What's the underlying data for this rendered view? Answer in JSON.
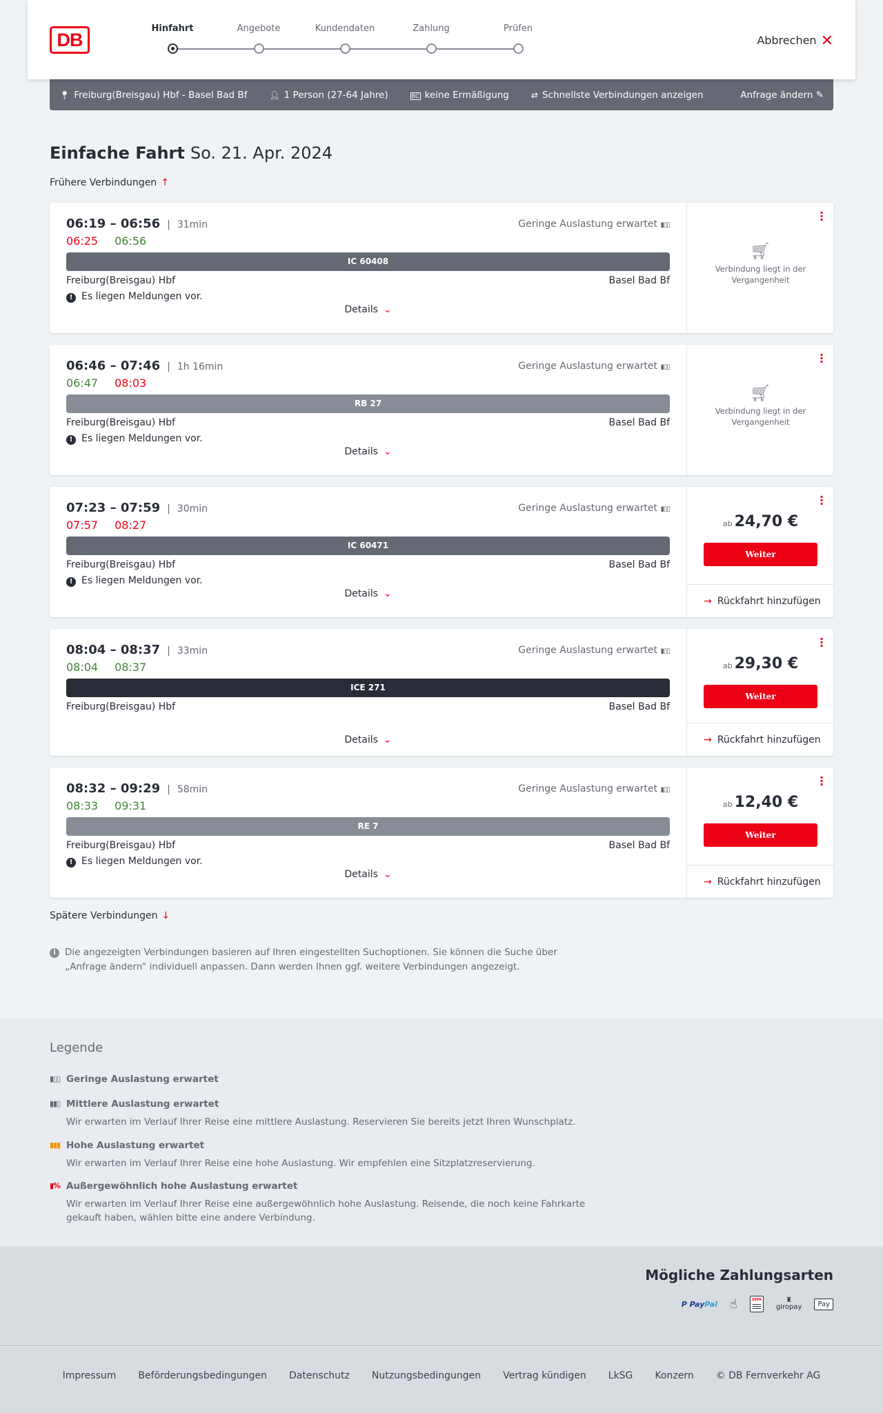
{
  "header": {
    "logo": "DB",
    "steps": [
      {
        "label": "Hinfahrt",
        "active": true
      },
      {
        "label": "Angebote"
      },
      {
        "label": "Kundendaten"
      },
      {
        "label": "Zahlung"
      },
      {
        "label": "Prüfen"
      }
    ],
    "cancel": "Abbrechen"
  },
  "search": {
    "route": "Freiburg(Breisgau) Hbf - Basel Bad Bf",
    "travellers": "1 Person (27-64 Jahre)",
    "discount": "keine Ermäßigung",
    "option": "Schnellste Verbindungen anzeigen",
    "edit": "Anfrage ändern"
  },
  "title": {
    "type": "Einfache Fahrt",
    "date": "So. 21. Apr. 2024"
  },
  "earlier": "Frühere Verbindungen",
  "later": "Spätere Verbindungen",
  "connections": [
    {
      "dep": "06:19",
      "arr": "06:56",
      "duration": "31min",
      "rt_dep": "06:25",
      "rt_dep_status": "late",
      "rt_arr": "06:56",
      "rt_arr_status": "ontime",
      "occupancy": "Geringe Auslastung erwartet",
      "train": "IC 60408",
      "train_color": "#646973",
      "from": "Freiburg(Breisgau) Hbf",
      "to": "Basel Bad Bf",
      "message": "Es liegen Meldungen vor.",
      "details": "Details",
      "past": "Verbindung liegt in der Vergangenheit"
    },
    {
      "dep": "06:46",
      "arr": "07:46",
      "duration": "1h 16min",
      "rt_dep": "06:47",
      "rt_dep_status": "ontime",
      "rt_arr": "08:03",
      "rt_arr_status": "late",
      "occupancy": "Geringe Auslastung erwartet",
      "train": "RB 27",
      "train_color": "#878c96",
      "from": "Freiburg(Breisgau) Hbf",
      "to": "Basel Bad Bf",
      "message": "Es liegen Meldungen vor.",
      "details": "Details",
      "past": "Verbindung liegt in der Vergangenheit"
    },
    {
      "dep": "07:23",
      "arr": "07:59",
      "duration": "30min",
      "rt_dep": "07:57",
      "rt_dep_status": "late",
      "rt_arr": "08:27",
      "rt_arr_status": "late",
      "occupancy": "Geringe Auslastung erwartet",
      "train": "IC 60471",
      "train_color": "#646973",
      "from": "Freiburg(Breisgau) Hbf",
      "to": "Basel Bad Bf",
      "message": "Es liegen Meldungen vor.",
      "details": "Details",
      "price_prefix": "ab",
      "price": "24,70 €",
      "button": "Weiter",
      "return": "Rückfahrt hinzufügen"
    },
    {
      "dep": "08:04",
      "arr": "08:37",
      "duration": "33min",
      "rt_dep": "08:04",
      "rt_dep_status": "ontime",
      "rt_arr": "08:37",
      "rt_arr_status": "ontime",
      "occupancy": "Geringe Auslastung erwartet",
      "train": "ICE 271",
      "train_color": "#282d37",
      "from": "Freiburg(Breisgau) Hbf",
      "to": "Basel Bad Bf",
      "details": "Details",
      "price_prefix": "ab",
      "price": "29,30 €",
      "button": "Weiter",
      "return": "Rückfahrt hinzufügen"
    },
    {
      "dep": "08:32",
      "arr": "09:29",
      "duration": "58min",
      "rt_dep": "08:33",
      "rt_dep_status": "ontime",
      "rt_arr": "09:31",
      "rt_arr_status": "ontime",
      "occupancy": "Geringe Auslastung erwartet",
      "train": "RE 7",
      "train_color": "#878c96",
      "from": "Freiburg(Breisgau) Hbf",
      "to": "Basel Bad Bf",
      "message": "Es liegen Meldungen vor.",
      "details": "Details",
      "price_prefix": "ab",
      "price": "12,40 €",
      "button": "Weiter",
      "return": "Rückfahrt hinzufügen"
    }
  ],
  "info": "Die angezeigten Verbindungen basieren auf Ihren eingestellten Suchoptionen. Sie können die Suche über „Anfrage ändern“ individuell anpassen. Dann werden Ihnen ggf. weitere Verbindungen angezeigt.",
  "legend": {
    "title": "Legende",
    "items": [
      {
        "title": "Geringe Auslastung erwartet",
        "color": "#646973"
      },
      {
        "title": "Mittlere Auslastung erwartet",
        "text": "Wir erwarten im Verlauf Ihrer Reise eine mittlere Auslastung. Reservieren Sie bereits jetzt Ihren Wunschplatz.",
        "color": "#646973"
      },
      {
        "title": "Hohe Auslastung erwartet",
        "text": "Wir erwarten im Verlauf Ihrer Reise eine hohe Auslastung. Wir empfehlen eine Sitzplatzreservierung.",
        "color": "#f39200"
      },
      {
        "title": "Außergewöhnlich hohe Auslastung erwartet",
        "text": "Wir erwarten im Verlauf Ihrer Reise eine außergewöhnlich hohe Auslastung. Reisende, die noch keine Fahrkarte gekauft haben, wählen bitte eine andere Verbindung.",
        "color": "#ec0016"
      }
    ]
  },
  "payment": {
    "title": "Mögliche Zahlungsarten",
    "methods": [
      "PayPal",
      "Kreditkarte",
      "SEPA",
      "giropay",
      "Apple Pay"
    ]
  },
  "footer": [
    "Impressum",
    "Beförderungsbedingungen",
    "Datenschutz",
    "Nutzungsbedingungen",
    "Vertrag kündigen",
    "LkSG",
    "Konzern",
    "© DB Fernverkehr AG"
  ],
  "colors": {
    "accent": "#ec0016",
    "late": "#ec0016",
    "ontime": "#408335"
  }
}
